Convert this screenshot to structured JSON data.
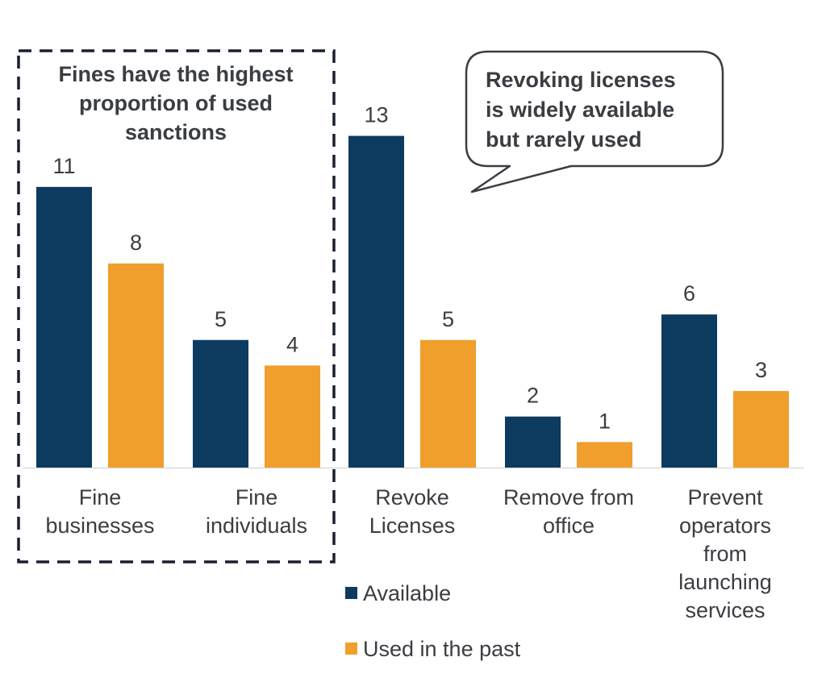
{
  "chart_data": {
    "type": "bar",
    "title": "",
    "xlabel": "",
    "ylabel": "",
    "ylim": [
      0,
      13
    ],
    "grid": false,
    "categories": [
      [
        "Fine",
        "businesses"
      ],
      [
        "Fine",
        "individuals"
      ],
      [
        "Revoke",
        "Licenses"
      ],
      [
        "Remove from",
        "office"
      ],
      [
        "Prevent",
        "operators",
        "from",
        "launching",
        "services"
      ]
    ],
    "series": [
      {
        "name": "Available",
        "color": "#0d3a5f",
        "values": [
          11,
          5,
          13,
          2,
          6
        ]
      },
      {
        "name": "Used in the past",
        "color": "#f09e2c",
        "values": [
          8,
          4,
          5,
          1,
          3
        ]
      }
    ],
    "legend": {
      "placement": "bottom-center",
      "entries": [
        "Available",
        "Used in the past"
      ]
    },
    "annotations": [
      {
        "id": "fines-box",
        "style": "dashed-box",
        "covers_categories": [
          "Fine businesses",
          "Fine individuals"
        ],
        "lines": [
          "Fines have the highest",
          "proportion of used",
          "sanctions"
        ]
      },
      {
        "id": "revoke-callout",
        "style": "speech-bubble",
        "points_to": "Revoke Licenses",
        "lines": [
          "Revoking licenses",
          "is widely available",
          "but rarely used"
        ]
      }
    ]
  }
}
